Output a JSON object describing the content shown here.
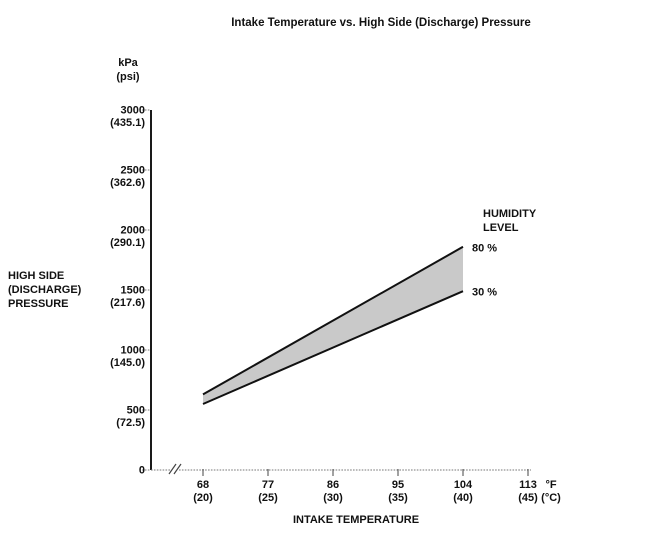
{
  "page": {
    "background": "#ffffff"
  },
  "chart_data": {
    "type": "area",
    "title": "Intake Temperature vs. High Side (Discharge) Pressure",
    "x_axis": {
      "title": "INTAKE TEMPERATURE",
      "unit_primary": "°F",
      "unit_secondary": "(°C)",
      "range_f": [
        68,
        113
      ],
      "axis_break": true,
      "ticks": [
        {
          "value": 68,
          "label_f": "68",
          "label_c": "(20)"
        },
        {
          "value": 77,
          "label_f": "77",
          "label_c": "(25)"
        },
        {
          "value": 86,
          "label_f": "86",
          "label_c": "(30)"
        },
        {
          "value": 95,
          "label_f": "95",
          "label_c": "(35)"
        },
        {
          "value": 104,
          "label_f": "104",
          "label_c": "(40)"
        },
        {
          "value": 113,
          "label_f": "113",
          "label_c": "(45)"
        }
      ]
    },
    "y_axis": {
      "title": "HIGH SIDE (DISCHARGE) PRESSURE",
      "unit_primary": "kPa",
      "unit_secondary": "(psi)",
      "range_kpa": [
        0,
        3000
      ],
      "ticks": [
        {
          "value": 3000,
          "label_kpa": "3000",
          "label_psi": "(435.1)"
        },
        {
          "value": 2500,
          "label_kpa": "2500",
          "label_psi": "(362.6)"
        },
        {
          "value": 2000,
          "label_kpa": "2000",
          "label_psi": "(290.1)"
        },
        {
          "value": 1500,
          "label_kpa": "1500",
          "label_psi": "(217.6)"
        },
        {
          "value": 1000,
          "label_kpa": "1000",
          "label_psi": "(145.0)"
        },
        {
          "value": 500,
          "label_kpa": "500",
          "label_psi": "(72.5)"
        },
        {
          "value": 0,
          "label_kpa": "0",
          "label_psi": ""
        }
      ]
    },
    "legend": {
      "title": "HUMIDITY LEVEL"
    },
    "series": [
      {
        "name": "80 %",
        "points_f_kpa": [
          [
            68,
            630
          ],
          [
            104,
            1860
          ]
        ]
      },
      {
        "name": "30 %",
        "points_f_kpa": [
          [
            68,
            550
          ],
          [
            104,
            1490
          ]
        ]
      }
    ],
    "band": {
      "fill": "#c9c9c9",
      "between": [
        "80 %",
        "30 %"
      ]
    },
    "colors": {
      "line": "#111111",
      "axis_major": "#1a1a1a",
      "axis_minor": "#777777",
      "tick": "#444444",
      "text": "#111111"
    },
    "layout_hints": {
      "grid": false,
      "legend_position": "right-of-band-endpoints"
    }
  }
}
